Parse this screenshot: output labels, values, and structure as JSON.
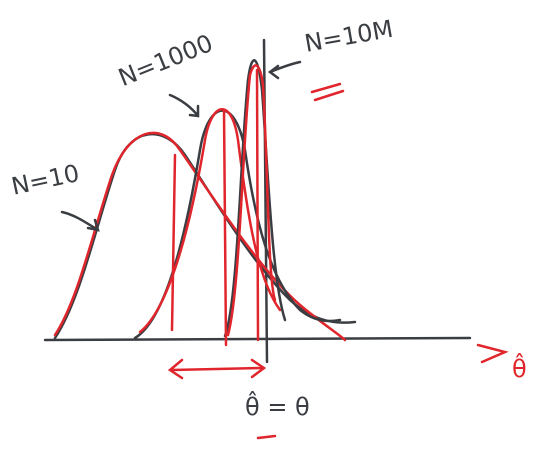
{
  "curves": [
    {
      "label": "N=10"
    },
    {
      "label": "N=1000"
    },
    {
      "label": "N=10M"
    }
  ],
  "estimate_label": "θ̂ = θ",
  "axis_label": "θ̂"
}
